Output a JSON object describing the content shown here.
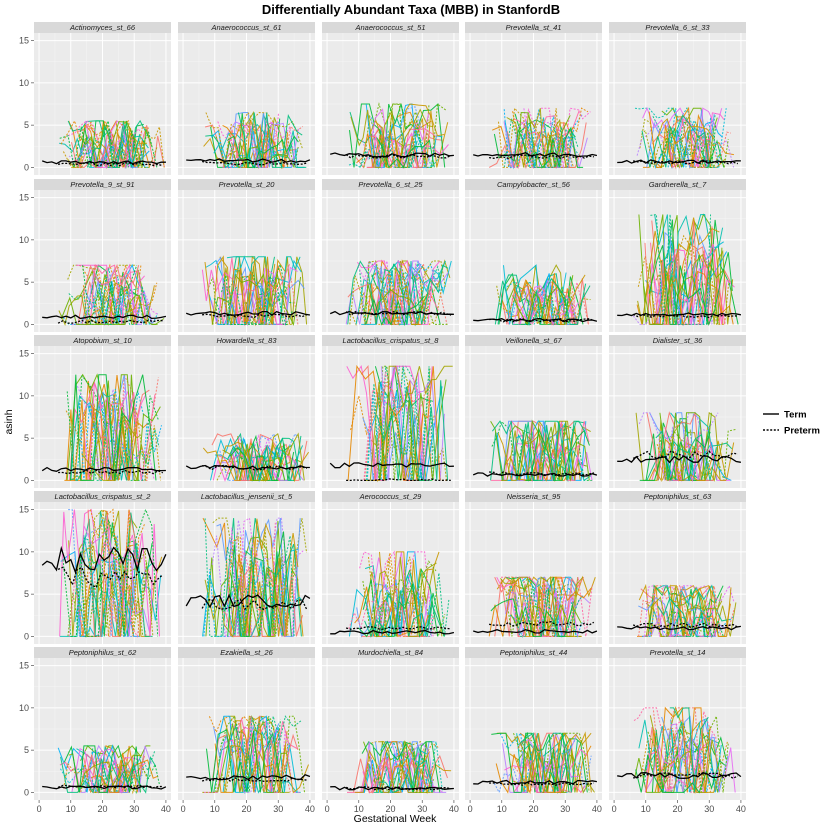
{
  "chart_data": {
    "type": "line",
    "title": "Differentially Abundant Taxa (MBB) in StanfordB",
    "xlabel": "Gestational Week",
    "ylabel": "asinh",
    "xlim": [
      0,
      40
    ],
    "ylim": [
      0,
      15
    ],
    "x_ticks": [
      0,
      10,
      20,
      30,
      40
    ],
    "y_ticks": [
      0,
      5,
      10,
      15
    ],
    "legend": {
      "position": "right",
      "entries": [
        {
          "label": "Term",
          "linetype": "solid",
          "color": "#000000"
        },
        {
          "label": "Preterm",
          "linetype": "dotted",
          "color": "#000000"
        }
      ]
    },
    "panels": [
      {
        "label": "Actinomyces_st_66",
        "term_mean": 0.6,
        "preterm_mean": 0.4,
        "subject_max": 5.5
      },
      {
        "label": "Anaerococcus_st_61",
        "term_mean": 0.8,
        "preterm_mean": 0.5,
        "subject_max": 6.5
      },
      {
        "label": "Anaerococcus_st_51",
        "term_mean": 1.5,
        "preterm_mean": 1.3,
        "subject_max": 7.5
      },
      {
        "label": "Prevotella_st_41",
        "term_mean": 1.5,
        "preterm_mean": 1.3,
        "subject_max": 7.0
      },
      {
        "label": "Prevotella_6_st_33",
        "term_mean": 0.7,
        "preterm_mean": 0.6,
        "subject_max": 7.0
      },
      {
        "label": "Prevotella_9_st_91",
        "term_mean": 0.9,
        "preterm_mean": 0.3,
        "subject_max": 7.0
      },
      {
        "label": "Prevotella_st_20",
        "term_mean": 1.3,
        "preterm_mean": 1.0,
        "subject_max": 8.0
      },
      {
        "label": "Prevotella_6_st_25",
        "term_mean": 1.3,
        "preterm_mean": 1.3,
        "subject_max": 7.5
      },
      {
        "label": "Campylobacter_st_56",
        "term_mean": 0.5,
        "preterm_mean": 0.5,
        "subject_max": 7.0
      },
      {
        "label": "Gardnerella_st_7",
        "term_mean": 1.2,
        "preterm_mean": 1.0,
        "subject_max": 13.0
      },
      {
        "label": "Atopobium_st_10",
        "term_mean": 1.3,
        "preterm_mean": 1.0,
        "subject_max": 12.5
      },
      {
        "label": "Howardella_st_83",
        "term_mean": 1.5,
        "preterm_mean": 1.5,
        "subject_max": 5.5
      },
      {
        "label": "Lactobacillus_crispatus_st_8",
        "term_mean": 1.8,
        "preterm_mean": 0.0,
        "subject_max": 13.5
      },
      {
        "label": "Veillonella_st_67",
        "term_mean": 0.7,
        "preterm_mean": 0.8,
        "subject_max": 7.0
      },
      {
        "label": "Dialister_st_36",
        "term_mean": 2.5,
        "preterm_mean": 3.0,
        "subject_max": 8.0
      },
      {
        "label": "Lactobacillus_crispatus_st_2",
        "term_mean": 9.0,
        "preterm_mean": 7.0,
        "subject_max": 15.0
      },
      {
        "label": "Lactobacillus_jensenii_st_5",
        "term_mean": 4.2,
        "preterm_mean": 3.8,
        "subject_max": 14.0
      },
      {
        "label": "Aerococcus_st_29",
        "term_mean": 0.5,
        "preterm_mean": 1.0,
        "subject_max": 10.0
      },
      {
        "label": "Neisseria_st_95",
        "term_mean": 0.6,
        "preterm_mean": 1.5,
        "subject_max": 7.0
      },
      {
        "label": "Peptoniphilus_st_63",
        "term_mean": 1.0,
        "preterm_mean": 1.3,
        "subject_max": 6.0
      },
      {
        "label": "Peptoniphilus_st_62",
        "term_mean": 0.6,
        "preterm_mean": 0.7,
        "subject_max": 5.5
      },
      {
        "label": "Ezakiella_st_26",
        "term_mean": 1.8,
        "preterm_mean": 1.5,
        "subject_max": 9.0
      },
      {
        "label": "Murdochiella_st_84",
        "term_mean": 0.5,
        "preterm_mean": 0.5,
        "subject_max": 6.0
      },
      {
        "label": "Peptoniphilus_st_44",
        "term_mean": 1.2,
        "preterm_mean": 1.0,
        "subject_max": 7.0
      },
      {
        "label": "Prevotella_st_14",
        "term_mean": 2.0,
        "preterm_mean": 2.0,
        "subject_max": 10.0
      }
    ],
    "subject_palette": [
      "#F8766D",
      "#E58700",
      "#C99800",
      "#A3A500",
      "#6BB100",
      "#00BA38",
      "#00BF7D",
      "#00C0AF",
      "#00BCD8",
      "#00B0F6",
      "#619CFF",
      "#B983FF",
      "#E76BF3",
      "#FD61D1",
      "#FF67A4"
    ]
  }
}
